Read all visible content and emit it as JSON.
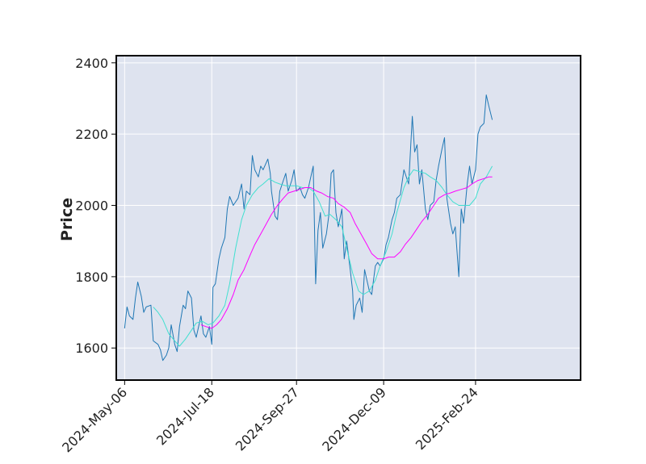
{
  "chart_data": {
    "type": "line",
    "title": "",
    "xlabel": "",
    "ylabel": "Price",
    "ylim": [
      1510,
      2420
    ],
    "xlim": [
      "2024-04-29",
      "2025-05-23"
    ],
    "grid": true,
    "y_ticks": [
      1600,
      1800,
      2000,
      2200,
      2400
    ],
    "x_ticks": [
      "2024-May-06",
      "2024-Jul-18",
      "2024-Sep-27",
      "2024-Dec-09",
      "2025-Feb-24"
    ],
    "colors": {
      "plot_background": "#dee3ef",
      "grid": "#ffffff",
      "border": "#000000"
    },
    "series": [
      {
        "color": "#1f77b4",
        "points": [
          [
            "2024-05-06",
            1655
          ],
          [
            "2024-05-08",
            1715
          ],
          [
            "2024-05-10",
            1690
          ],
          [
            "2024-05-13",
            1680
          ],
          [
            "2024-05-15",
            1740
          ],
          [
            "2024-05-17",
            1785
          ],
          [
            "2024-05-20",
            1745
          ],
          [
            "2024-05-22",
            1700
          ],
          [
            "2024-05-24",
            1715
          ],
          [
            "2024-05-28",
            1720
          ],
          [
            "2024-05-30",
            1620
          ],
          [
            "2024-06-03",
            1610
          ],
          [
            "2024-06-05",
            1595
          ],
          [
            "2024-06-07",
            1565
          ],
          [
            "2024-06-10",
            1580
          ],
          [
            "2024-06-12",
            1600
          ],
          [
            "2024-06-14",
            1665
          ],
          [
            "2024-06-17",
            1610
          ],
          [
            "2024-06-19",
            1590
          ],
          [
            "2024-06-21",
            1660
          ],
          [
            "2024-06-24",
            1720
          ],
          [
            "2024-06-26",
            1710
          ],
          [
            "2024-06-28",
            1760
          ],
          [
            "2024-07-01",
            1740
          ],
          [
            "2024-07-03",
            1650
          ],
          [
            "2024-07-05",
            1630
          ],
          [
            "2024-07-09",
            1690
          ],
          [
            "2024-07-11",
            1640
          ],
          [
            "2024-07-13",
            1630
          ],
          [
            "2024-07-16",
            1660
          ],
          [
            "2024-07-18",
            1610
          ],
          [
            "2024-07-19",
            1770
          ],
          [
            "2024-07-21",
            1780
          ],
          [
            "2024-07-24",
            1850
          ],
          [
            "2024-07-26",
            1880
          ],
          [
            "2024-07-29",
            1910
          ],
          [
            "2024-07-31",
            1990
          ],
          [
            "2024-08-02",
            2025
          ],
          [
            "2024-08-05",
            2000
          ],
          [
            "2024-08-07",
            2010
          ],
          [
            "2024-08-09",
            2020
          ],
          [
            "2024-08-12",
            2060
          ],
          [
            "2024-08-14",
            1990
          ],
          [
            "2024-08-16",
            2040
          ],
          [
            "2024-08-19",
            2030
          ],
          [
            "2024-08-21",
            2140
          ],
          [
            "2024-08-23",
            2100
          ],
          [
            "2024-08-26",
            2080
          ],
          [
            "2024-08-28",
            2110
          ],
          [
            "2024-08-30",
            2100
          ],
          [
            "2024-09-03",
            2130
          ],
          [
            "2024-09-05",
            2090
          ],
          [
            "2024-09-06",
            2040
          ],
          [
            "2024-09-09",
            1970
          ],
          [
            "2024-09-11",
            1960
          ],
          [
            "2024-09-13",
            2040
          ],
          [
            "2024-09-16",
            2070
          ],
          [
            "2024-09-18",
            2090
          ],
          [
            "2024-09-20",
            2040
          ],
          [
            "2024-09-23",
            2070
          ],
          [
            "2024-09-25",
            2100
          ],
          [
            "2024-09-27",
            2040
          ],
          [
            "2024-09-30",
            2050
          ],
          [
            "2024-10-02",
            2030
          ],
          [
            "2024-10-04",
            2020
          ],
          [
            "2024-10-07",
            2050
          ],
          [
            "2024-10-09",
            2080
          ],
          [
            "2024-10-11",
            2110
          ],
          [
            "2024-10-13",
            1780
          ],
          [
            "2024-10-15",
            1930
          ],
          [
            "2024-10-17",
            1980
          ],
          [
            "2024-10-19",
            1880
          ],
          [
            "2024-10-22",
            1920
          ],
          [
            "2024-10-24",
            1970
          ],
          [
            "2024-10-26",
            2090
          ],
          [
            "2024-10-28",
            2100
          ],
          [
            "2024-10-30",
            1980
          ],
          [
            "2024-11-01",
            1940
          ],
          [
            "2024-11-04",
            1990
          ],
          [
            "2024-11-06",
            1850
          ],
          [
            "2024-11-08",
            1900
          ],
          [
            "2024-11-11",
            1820
          ],
          [
            "2024-11-13",
            1760
          ],
          [
            "2024-11-14",
            1680
          ],
          [
            "2024-11-16",
            1720
          ],
          [
            "2024-11-19",
            1740
          ],
          [
            "2024-11-21",
            1700
          ],
          [
            "2024-11-23",
            1820
          ],
          [
            "2024-11-25",
            1790
          ],
          [
            "2024-11-27",
            1760
          ],
          [
            "2024-11-29",
            1750
          ],
          [
            "2024-12-02",
            1830
          ],
          [
            "2024-12-04",
            1840
          ],
          [
            "2024-12-06",
            1830
          ],
          [
            "2024-12-09",
            1850
          ],
          [
            "2024-12-11",
            1890
          ],
          [
            "2024-12-13",
            1910
          ],
          [
            "2024-12-16",
            1960
          ],
          [
            "2024-12-18",
            1980
          ],
          [
            "2024-12-20",
            2020
          ],
          [
            "2024-12-23",
            2030
          ],
          [
            "2024-12-26",
            2100
          ],
          [
            "2024-12-30",
            2060
          ],
          [
            "2025-01-02",
            2250
          ],
          [
            "2025-01-04",
            2150
          ],
          [
            "2025-01-06",
            2170
          ],
          [
            "2025-01-08",
            2060
          ],
          [
            "2025-01-10",
            2100
          ],
          [
            "2025-01-13",
            1990
          ],
          [
            "2025-01-15",
            1960
          ],
          [
            "2025-01-17",
            2000
          ],
          [
            "2025-01-20",
            2010
          ],
          [
            "2025-01-22",
            2070
          ],
          [
            "2025-01-24",
            2110
          ],
          [
            "2025-01-27",
            2160
          ],
          [
            "2025-01-29",
            2190
          ],
          [
            "2025-01-31",
            2020
          ],
          [
            "2025-02-03",
            1950
          ],
          [
            "2025-02-05",
            1920
          ],
          [
            "2025-02-07",
            1940
          ],
          [
            "2025-02-10",
            1800
          ],
          [
            "2025-02-12",
            1990
          ],
          [
            "2025-02-14",
            1950
          ],
          [
            "2025-02-17",
            2060
          ],
          [
            "2025-02-19",
            2110
          ],
          [
            "2025-02-21",
            2060
          ],
          [
            "2025-02-24",
            2100
          ],
          [
            "2025-02-26",
            2200
          ],
          [
            "2025-02-28",
            2220
          ],
          [
            "2025-03-03",
            2230
          ],
          [
            "2025-03-05",
            2310
          ],
          [
            "2025-03-07",
            2280
          ],
          [
            "2025-03-10",
            2240
          ]
        ]
      },
      {
        "color": "#40e0d0",
        "points": [
          [
            "2024-05-30",
            1715
          ],
          [
            "2024-06-03",
            1700
          ],
          [
            "2024-06-07",
            1680
          ],
          [
            "2024-06-12",
            1640
          ],
          [
            "2024-06-17",
            1620
          ],
          [
            "2024-06-21",
            1605
          ],
          [
            "2024-06-26",
            1625
          ],
          [
            "2024-07-01",
            1650
          ],
          [
            "2024-07-05",
            1670
          ],
          [
            "2024-07-10",
            1675
          ],
          [
            "2024-07-15",
            1665
          ],
          [
            "2024-07-19",
            1670
          ],
          [
            "2024-07-24",
            1690
          ],
          [
            "2024-07-29",
            1720
          ],
          [
            "2024-08-02",
            1780
          ],
          [
            "2024-08-07",
            1880
          ],
          [
            "2024-08-12",
            1960
          ],
          [
            "2024-08-16",
            2000
          ],
          [
            "2024-08-21",
            2030
          ],
          [
            "2024-08-26",
            2050
          ],
          [
            "2024-08-30",
            2060
          ],
          [
            "2024-09-04",
            2075
          ],
          [
            "2024-09-09",
            2065
          ],
          [
            "2024-09-13",
            2060
          ],
          [
            "2024-09-18",
            2055
          ],
          [
            "2024-09-23",
            2055
          ],
          [
            "2024-09-27",
            2055
          ],
          [
            "2024-10-02",
            2050
          ],
          [
            "2024-10-07",
            2050
          ],
          [
            "2024-10-11",
            2040
          ],
          [
            "2024-10-16",
            2010
          ],
          [
            "2024-10-21",
            1970
          ],
          [
            "2024-10-25",
            1975
          ],
          [
            "2024-10-30",
            1960
          ],
          [
            "2024-11-04",
            1940
          ],
          [
            "2024-11-08",
            1880
          ],
          [
            "2024-11-13",
            1810
          ],
          [
            "2024-11-18",
            1760
          ],
          [
            "2024-11-22",
            1750
          ],
          [
            "2024-11-27",
            1760
          ],
          [
            "2024-12-02",
            1790
          ],
          [
            "2024-12-06",
            1830
          ],
          [
            "2024-12-11",
            1870
          ],
          [
            "2024-12-16",
            1920
          ],
          [
            "2024-12-20",
            1980
          ],
          [
            "2024-12-26",
            2050
          ],
          [
            "2024-12-30",
            2080
          ],
          [
            "2025-01-03",
            2100
          ],
          [
            "2025-01-08",
            2095
          ],
          [
            "2025-01-13",
            2090
          ],
          [
            "2025-01-17",
            2080
          ],
          [
            "2025-01-22",
            2070
          ],
          [
            "2025-01-27",
            2050
          ],
          [
            "2025-01-31",
            2030
          ],
          [
            "2025-02-05",
            2010
          ],
          [
            "2025-02-10",
            2000
          ],
          [
            "2025-02-14",
            2000
          ],
          [
            "2025-02-19",
            2000
          ],
          [
            "2025-02-24",
            2020
          ],
          [
            "2025-02-28",
            2060
          ],
          [
            "2025-03-05",
            2080
          ],
          [
            "2025-03-10",
            2110
          ]
        ]
      },
      {
        "color": "#ff00ff",
        "points": [
          [
            "2024-07-09",
            1665
          ],
          [
            "2024-07-13",
            1660
          ],
          [
            "2024-07-18",
            1655
          ],
          [
            "2024-07-22",
            1665
          ],
          [
            "2024-07-26",
            1680
          ],
          [
            "2024-07-31",
            1710
          ],
          [
            "2024-08-05",
            1750
          ],
          [
            "2024-08-09",
            1790
          ],
          [
            "2024-08-14",
            1820
          ],
          [
            "2024-08-19",
            1860
          ],
          [
            "2024-08-23",
            1890
          ],
          [
            "2024-08-28",
            1920
          ],
          [
            "2024-09-02",
            1950
          ],
          [
            "2024-09-06",
            1975
          ],
          [
            "2024-09-11",
            2000
          ],
          [
            "2024-09-16",
            2020
          ],
          [
            "2024-09-20",
            2035
          ],
          [
            "2024-09-25",
            2040
          ],
          [
            "2024-09-30",
            2045
          ],
          [
            "2024-10-04",
            2050
          ],
          [
            "2024-10-09",
            2050
          ],
          [
            "2024-10-14",
            2040
          ],
          [
            "2024-10-18",
            2035
          ],
          [
            "2024-10-23",
            2025
          ],
          [
            "2024-10-28",
            2020
          ],
          [
            "2024-11-01",
            2005
          ],
          [
            "2024-11-06",
            1995
          ],
          [
            "2024-11-11",
            1980
          ],
          [
            "2024-11-15",
            1950
          ],
          [
            "2024-11-20",
            1920
          ],
          [
            "2024-11-25",
            1890
          ],
          [
            "2024-11-29",
            1865
          ],
          [
            "2024-12-04",
            1850
          ],
          [
            "2024-12-09",
            1850
          ],
          [
            "2024-12-13",
            1855
          ],
          [
            "2024-12-18",
            1855
          ],
          [
            "2024-12-23",
            1870
          ],
          [
            "2024-12-27",
            1890
          ],
          [
            "2025-01-01",
            1910
          ],
          [
            "2025-01-06",
            1935
          ],
          [
            "2025-01-10",
            1955
          ],
          [
            "2025-01-15",
            1975
          ],
          [
            "2025-01-20",
            2000
          ],
          [
            "2025-01-24",
            2020
          ],
          [
            "2025-01-29",
            2030
          ],
          [
            "2025-02-03",
            2035
          ],
          [
            "2025-02-07",
            2040
          ],
          [
            "2025-02-12",
            2045
          ],
          [
            "2025-02-17",
            2050
          ],
          [
            "2025-02-21",
            2060
          ],
          [
            "2025-02-26",
            2070
          ],
          [
            "2025-03-03",
            2075
          ],
          [
            "2025-03-07",
            2080
          ],
          [
            "2025-03-10",
            2080
          ]
        ]
      }
    ]
  }
}
